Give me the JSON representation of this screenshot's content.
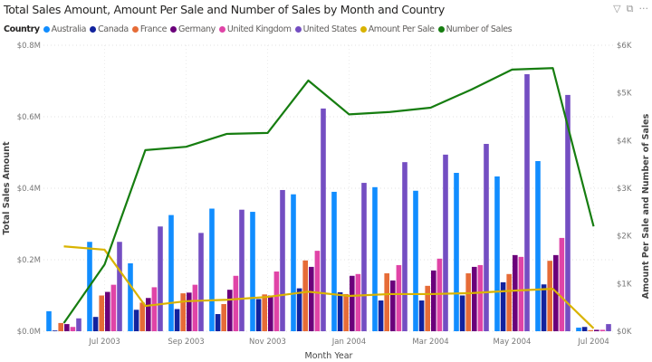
{
  "header": {
    "title": "Total Sales Amount, Amount Per Sale and Number of Sales by Month and Country",
    "icons": [
      "filter-icon",
      "focus-mode-icon",
      "more-options-icon"
    ],
    "more_label": "···"
  },
  "legend": {
    "title": "Country"
  },
  "chart_data": {
    "type": "bar",
    "subtype": "clustered-column-with-lines",
    "title": "Total Sales Amount, Amount Per Sale and Number of Sales by Month and Country",
    "xlabel": "Month Year",
    "ylabel": "Total Sales Amount",
    "y2label": "Amount Per Sale and Number of Sales",
    "categories": [
      "Jun 2003",
      "Jul 2003",
      "Aug 2003",
      "Sep 2003",
      "Oct 2003",
      "Nov 2003",
      "Dec 2003",
      "Jan 2004",
      "Feb 2004",
      "Mar 2004",
      "Apr 2004",
      "May 2004",
      "Jun 2004",
      "Jul 2004"
    ],
    "x_tick_labels": [
      "Jul 2003",
      "Sep 2003",
      "Nov 2003",
      "Jan 2004",
      "Mar 2004",
      "May 2004",
      "Jul 2004"
    ],
    "ylim": [
      0,
      0.8
    ],
    "y_ticks": [
      "$0.0M",
      "$0.2M",
      "$0.4M",
      "$0.6M",
      "$0.8M"
    ],
    "y2lim": [
      0,
      6
    ],
    "y2_ticks": [
      "$0K",
      "$1K",
      "$2K",
      "$3K",
      "$4K",
      "$5K",
      "$6K"
    ],
    "grid": true,
    "legend_position": "top-left",
    "bar_series": [
      {
        "name": "Australia",
        "color": "#118DFF",
        "values": [
          0.056,
          0.25,
          0.19,
          0.325,
          0.343,
          0.334,
          0.383,
          0.39,
          0.403,
          0.393,
          0.443,
          0.433,
          0.476,
          0.01
        ]
      },
      {
        "name": "Canada",
        "color": "#12239E",
        "values": [
          0.002,
          0.04,
          0.06,
          0.062,
          0.048,
          0.09,
          0.12,
          0.109,
          0.086,
          0.086,
          0.1,
          0.137,
          0.131,
          0.012
        ]
      },
      {
        "name": "France",
        "color": "#E66C37",
        "values": [
          0.023,
          0.1,
          0.08,
          0.106,
          0.076,
          0.103,
          0.198,
          0.104,
          0.162,
          0.127,
          0.162,
          0.16,
          0.197,
          0.003
        ]
      },
      {
        "name": "Germany",
        "color": "#6B007B",
        "values": [
          0.02,
          0.11,
          0.093,
          0.108,
          0.116,
          0.1,
          0.18,
          0.155,
          0.142,
          0.17,
          0.18,
          0.213,
          0.213,
          0.004
        ]
      },
      {
        "name": "United Kingdom",
        "color": "#E044A7",
        "values": [
          0.012,
          0.13,
          0.123,
          0.13,
          0.155,
          0.167,
          0.225,
          0.16,
          0.185,
          0.203,
          0.185,
          0.208,
          0.261,
          0.004
        ]
      },
      {
        "name": "United States",
        "color": "#744EC2",
        "values": [
          0.036,
          0.25,
          0.293,
          0.275,
          0.34,
          0.395,
          0.623,
          0.415,
          0.473,
          0.494,
          0.524,
          0.719,
          0.661,
          0.02
        ]
      }
    ],
    "line_series": [
      {
        "name": "Amount Per Sale",
        "color": "#D9B300",
        "axis": "right",
        "values": [
          1.78,
          1.71,
          0.53,
          0.63,
          0.66,
          0.72,
          0.83,
          0.74,
          0.78,
          0.78,
          0.8,
          0.85,
          0.89,
          0.06
        ]
      },
      {
        "name": "Number of Sales",
        "color": "#167D10",
        "axis": "right",
        "values": [
          0.17,
          1.4,
          3.8,
          3.87,
          4.14,
          4.16,
          5.26,
          4.55,
          4.6,
          4.69,
          5.07,
          5.49,
          5.52,
          2.2
        ]
      }
    ]
  }
}
